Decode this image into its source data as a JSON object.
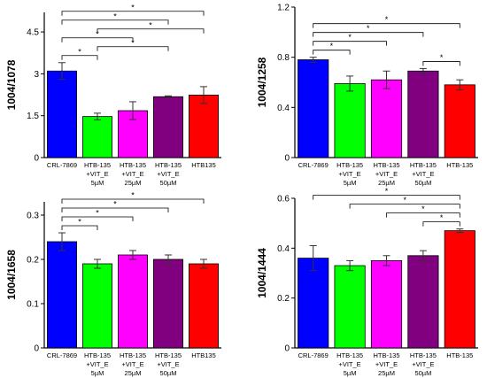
{
  "chart_data": [
    {
      "type": "bar",
      "ylabel": "1004/1078",
      "ylim": [
        0,
        5.2
      ],
      "yticks": [
        "0",
        "1.5",
        "3",
        "4.5"
      ],
      "yticks_values": [
        0,
        1.5,
        3,
        4.5
      ],
      "categories": [
        [
          "CRL-7869"
        ],
        [
          "HTB-135",
          "+VIT_E",
          "5µM"
        ],
        [
          "HTB-135",
          "+VIT_E",
          "25µM"
        ],
        [
          "HTB-135",
          "+VIT_E",
          "50µM"
        ],
        [
          "HTB135"
        ]
      ],
      "values": [
        3.1,
        1.47,
        1.68,
        2.18,
        2.24
      ],
      "errors": [
        0.3,
        0.12,
        0.32,
        0.03,
        0.3
      ],
      "colors": [
        "#0000ff",
        "#00ff00",
        "#ff00ff",
        "#800080",
        "#ff0000"
      ],
      "significance": [
        {
          "from": 0,
          "to": 1,
          "label": "*"
        },
        {
          "from": 1,
          "to": 3,
          "label": "*"
        },
        {
          "from": 0,
          "to": 2,
          "label": "*"
        },
        {
          "from": 1,
          "to": 4,
          "label": "*"
        },
        {
          "from": 0,
          "to": 3,
          "label": "*"
        },
        {
          "from": 0,
          "to": 4,
          "label": "*"
        }
      ]
    },
    {
      "type": "bar",
      "ylabel": "1004/1258",
      "ylim": [
        0,
        1.2
      ],
      "yticks": [
        "0",
        "0.4",
        "0.8",
        "1.2"
      ],
      "yticks_values": [
        0,
        0.4,
        0.8,
        1.2
      ],
      "categories": [
        [
          "CRL-7869"
        ],
        [
          "HTB-135",
          "+VIT_E",
          "5µM"
        ],
        [
          "HTB-135",
          "+VIT_E",
          "25µM"
        ],
        [
          "HTB-135",
          "+VIT_E",
          "50µM"
        ],
        [
          "HTB-135"
        ]
      ],
      "values": [
        0.78,
        0.59,
        0.62,
        0.69,
        0.58
      ],
      "errors": [
        0.02,
        0.06,
        0.07,
        0.02,
        0.04
      ],
      "colors": [
        "#0000ff",
        "#00ff00",
        "#ff00ff",
        "#800080",
        "#ff0000"
      ],
      "significance": [
        {
          "from": 0,
          "to": 1,
          "label": "*"
        },
        {
          "from": 3,
          "to": 4,
          "label": "*"
        },
        {
          "from": 0,
          "to": 2,
          "label": "*"
        },
        {
          "from": 0,
          "to": 3,
          "label": "*"
        },
        {
          "from": 0,
          "to": 4,
          "label": "*"
        }
      ]
    },
    {
      "type": "bar",
      "ylabel": "1004/1658",
      "ylim": [
        0,
        0.33
      ],
      "yticks": [
        "0",
        "0.1",
        "0.2",
        "0.3"
      ],
      "yticks_values": [
        0,
        0.1,
        0.2,
        0.3
      ],
      "categories": [
        [
          "CRL-7869"
        ],
        [
          "HTB-135",
          "+VIT_E",
          "5µM"
        ],
        [
          "HTB-135",
          "+VIT_E",
          "25µM"
        ],
        [
          "HTB-135",
          "+VIT_E",
          "50µM"
        ],
        [
          "HTB135"
        ]
      ],
      "values": [
        0.24,
        0.19,
        0.21,
        0.2,
        0.19
      ],
      "errors": [
        0.02,
        0.01,
        0.01,
        0.01,
        0.01
      ],
      "colors": [
        "#0000ff",
        "#00ff00",
        "#ff00ff",
        "#800080",
        "#ff0000"
      ],
      "significance": [
        {
          "from": 0,
          "to": 1,
          "label": "*"
        },
        {
          "from": 0,
          "to": 2,
          "label": "*"
        },
        {
          "from": 0,
          "to": 3,
          "label": "*"
        },
        {
          "from": 0,
          "to": 4,
          "label": "*"
        }
      ]
    },
    {
      "type": "bar",
      "ylabel": "1004/1444",
      "ylim": [
        0,
        0.6
      ],
      "yticks": [
        "0",
        "0.2",
        "0.4",
        "0.6"
      ],
      "yticks_values": [
        0,
        0.2,
        0.4,
        0.6
      ],
      "categories": [
        [
          "CRL-7869"
        ],
        [
          "HTB-135",
          "+VIT_E",
          "5µM"
        ],
        [
          "HTB-135",
          "+VIT_E",
          "25µM"
        ],
        [
          "HTB-135",
          "+VIT_E",
          "50µM"
        ],
        [
          "HTB-135"
        ]
      ],
      "values": [
        0.36,
        0.33,
        0.35,
        0.37,
        0.47
      ],
      "errors": [
        0.05,
        0.02,
        0.02,
        0.02,
        0.007
      ],
      "colors": [
        "#0000ff",
        "#00ff00",
        "#ff00ff",
        "#800080",
        "#ff0000"
      ],
      "significance": [
        {
          "from": 3,
          "to": 4,
          "label": "*"
        },
        {
          "from": 2,
          "to": 4,
          "label": "*"
        },
        {
          "from": 1,
          "to": 4,
          "label": "*"
        },
        {
          "from": 0,
          "to": 4,
          "label": "*"
        }
      ]
    }
  ]
}
